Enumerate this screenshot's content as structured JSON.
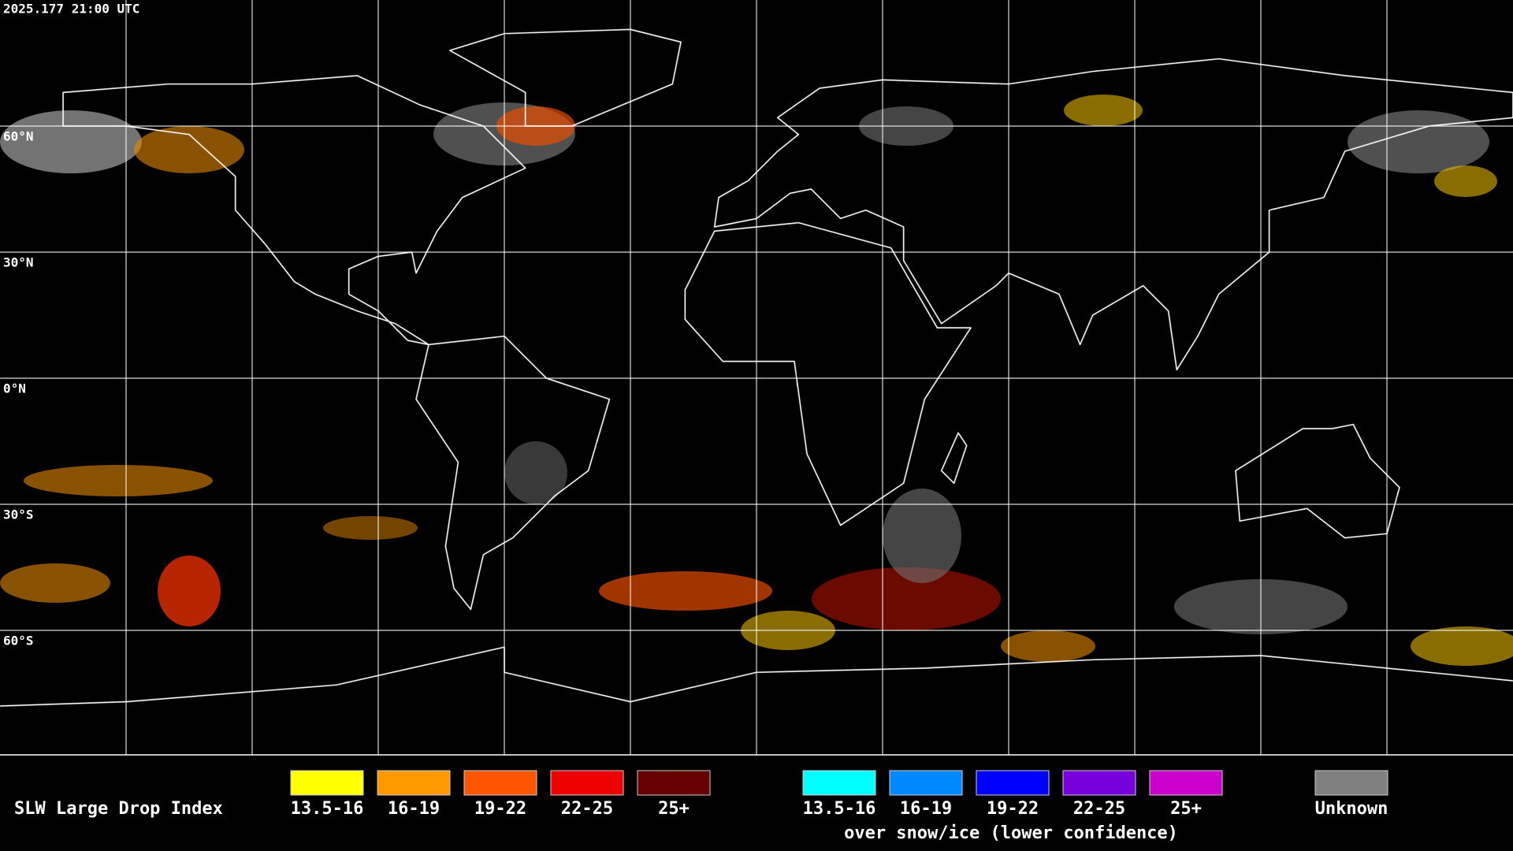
{
  "header": {
    "timestamp": "2025.177 21:00 UTC"
  },
  "map": {
    "latitude_labels": [
      "60°N",
      "30°N",
      "0°N",
      "30°S",
      "60°S"
    ]
  },
  "legend": {
    "title": "SLW Large Drop Index",
    "items": [
      {
        "label": "13.5-16",
        "color": "#ffff00"
      },
      {
        "label": "16-19",
        "color": "#ff9900"
      },
      {
        "label": "19-22",
        "color": "#ff5500"
      },
      {
        "label": "22-25",
        "color": "#ee0000"
      },
      {
        "label": "25+",
        "color": "#660000"
      }
    ],
    "snow_ice_items": [
      {
        "label": "13.5-16",
        "color": "#00ffff"
      },
      {
        "label": "16-19",
        "color": "#0088ff"
      },
      {
        "label": "19-22",
        "color": "#0000ff"
      },
      {
        "label": "22-25",
        "color": "#7700dd"
      },
      {
        "label": "25+",
        "color": "#cc00cc"
      }
    ],
    "snow_ice_note": "over snow/ice (lower confidence)",
    "unknown": {
      "label": "Unknown",
      "color": "#808080"
    }
  }
}
